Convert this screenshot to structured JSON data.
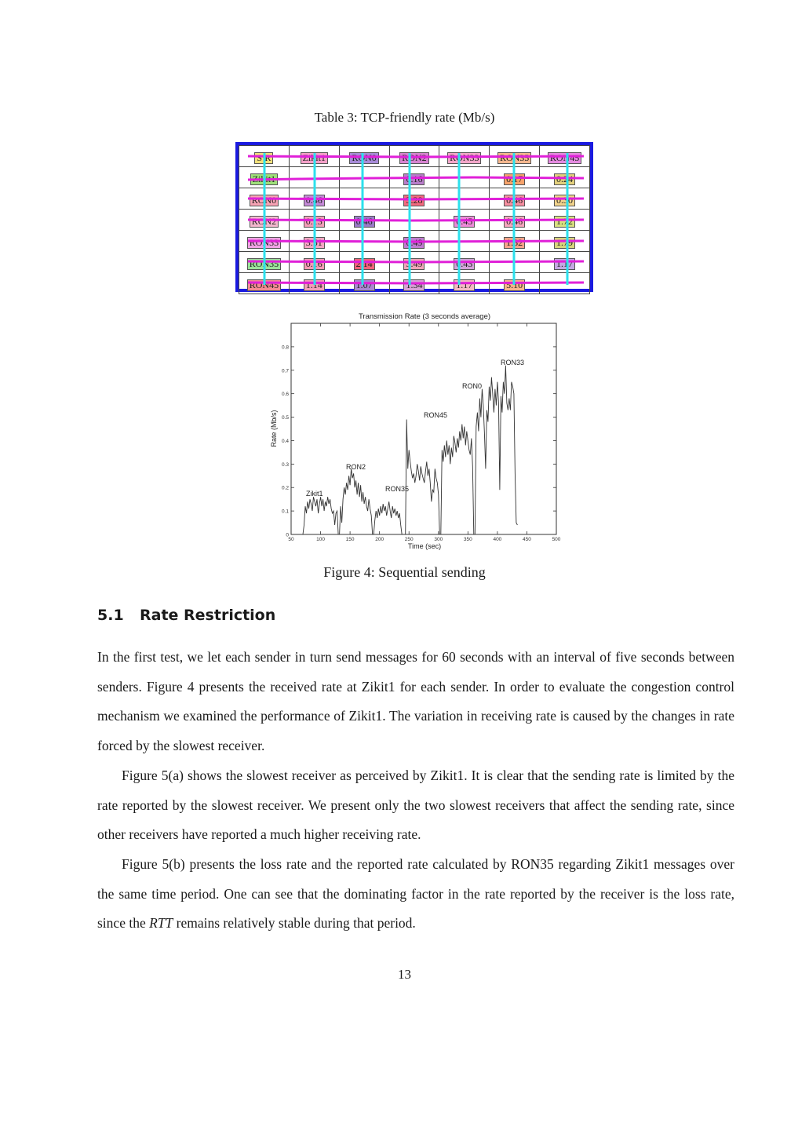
{
  "table3": {
    "caption": "Table 3: TCP-friendly rate (Mb/s)",
    "rows": [
      [
        {
          "text": "S\\R",
          "color": "#f2e07a"
        },
        {
          "text": "Zikit1",
          "color": "#f5a0c8"
        },
        {
          "text": "RON0",
          "color": "#a78bd8"
        },
        {
          "text": "RON2",
          "color": "#d783d0"
        },
        {
          "text": "RON33",
          "color": "#f3a6c9"
        },
        {
          "text": "RON35",
          "color": "#f7b78e"
        },
        {
          "text": "RON45",
          "color": "#e58ae0"
        }
      ],
      [
        {
          "text": "Zikit1",
          "color": "#9fe07a"
        },
        {
          "text": "",
          "color": ""
        },
        {
          "text": "",
          "color": ""
        },
        {
          "text": "0.16",
          "color": "#b87cc9"
        },
        {
          "text": "",
          "color": ""
        },
        {
          "text": "0.17",
          "color": "#f7a36b"
        },
        {
          "text": "0.24",
          "color": "#e3d07c"
        }
      ],
      [
        {
          "text": "RON0",
          "color": "#f7a3b4"
        },
        {
          "text": "0.46",
          "color": "#c58ad8"
        },
        {
          "text": "",
          "color": ""
        },
        {
          "text": "3.28",
          "color": "#f46a7f"
        },
        {
          "text": "",
          "color": ""
        },
        {
          "text": "0.46",
          "color": "#f78fa0"
        },
        {
          "text": "0.30",
          "color": "#f1d38b"
        }
      ],
      [
        {
          "text": "RON2",
          "color": "#f4b8ce"
        },
        {
          "text": "0.13",
          "color": "#f49fb9"
        },
        {
          "text": "0.46",
          "color": "#9b7ac8"
        },
        {
          "text": "",
          "color": ""
        },
        {
          "text": "0.45",
          "color": "#ee8bd9"
        },
        {
          "text": "0.46",
          "color": "#f7a6be"
        },
        {
          "text": "1.72",
          "color": "#d9e27f"
        }
      ],
      [
        {
          "text": "RON33",
          "color": "#f0a3e3"
        },
        {
          "text": "3.51",
          "color": "#f4a6c3"
        },
        {
          "text": "",
          "color": ""
        },
        {
          "text": "0.49",
          "color": "#c07ad0"
        },
        {
          "text": "",
          "color": ""
        },
        {
          "text": "1.32",
          "color": "#f7a38a"
        },
        {
          "text": "1.79",
          "color": "#d8d57c"
        }
      ],
      [
        {
          "text": "RON35",
          "color": "#9be39a"
        },
        {
          "text": "0.16",
          "color": "#f59bb4"
        },
        {
          "text": "2.14",
          "color": "#f2637a"
        },
        {
          "text": "3.49",
          "color": "#f0a5b7"
        },
        {
          "text": "0.43",
          "color": "#d2a3d8"
        },
        {
          "text": "",
          "color": ""
        },
        {
          "text": "1.17",
          "color": "#c4a8e2"
        }
      ],
      [
        {
          "text": "RON45",
          "color": "#f58a93"
        },
        {
          "text": "1.14",
          "color": "#f39db8"
        },
        {
          "text": "1.07",
          "color": "#a986d2"
        },
        {
          "text": "1.34",
          "color": "#d7a0d6"
        },
        {
          "text": "1.17",
          "color": "#f3b7c3"
        },
        {
          "text": "5.10",
          "color": "#f7b48b"
        },
        {
          "text": "",
          "color": ""
        }
      ]
    ]
  },
  "chart_data": {
    "type": "line",
    "title": "Transmission Rate (3 seconds average)",
    "xlabel": "Time (sec)",
    "ylabel": "Rate (Mb/s)",
    "xlim": [
      50,
      500
    ],
    "ylim": [
      0,
      0.9
    ],
    "xticks": [
      50,
      100,
      150,
      200,
      250,
      300,
      350,
      400,
      450,
      500
    ],
    "yticks": [
      0,
      0.1,
      0.2,
      0.3,
      0.4,
      0.5,
      0.6,
      0.7,
      0.8
    ],
    "series": [
      {
        "points": [
          [
            70,
            0
          ],
          [
            72,
            0.04
          ],
          [
            74,
            0.12
          ],
          [
            76,
            0.09
          ],
          [
            78,
            0.14
          ],
          [
            80,
            0.11
          ],
          [
            82,
            0.15
          ],
          [
            84,
            0.13
          ],
          [
            86,
            0.1
          ],
          [
            88,
            0.16
          ],
          [
            90,
            0.14
          ],
          [
            92,
            0.12
          ],
          [
            94,
            0.15
          ],
          [
            96,
            0.09
          ],
          [
            98,
            0.13
          ],
          [
            100,
            0.16
          ],
          [
            102,
            0.12
          ],
          [
            104,
            0.15
          ],
          [
            106,
            0.1
          ],
          [
            108,
            0.14
          ],
          [
            110,
            0.12
          ],
          [
            112,
            0.16
          ],
          [
            114,
            0.13
          ],
          [
            116,
            0.15
          ],
          [
            118,
            0.11
          ],
          [
            120,
            0.09
          ],
          [
            122,
            0.1
          ],
          [
            124,
            0.04
          ],
          [
            126,
            0.09
          ],
          [
            128,
            0.1
          ],
          [
            130,
            0.0
          ],
          [
            132,
            0.0
          ],
          [
            134,
            0.12
          ],
          [
            136,
            0.05
          ],
          [
            138,
            0.15
          ],
          [
            140,
            0.2
          ],
          [
            142,
            0.17
          ],
          [
            144,
            0.22
          ],
          [
            146,
            0.19
          ],
          [
            148,
            0.25
          ],
          [
            150,
            0.21
          ],
          [
            152,
            0.28
          ],
          [
            154,
            0.24
          ],
          [
            156,
            0.26
          ],
          [
            158,
            0.2
          ],
          [
            160,
            0.23
          ],
          [
            162,
            0.17
          ],
          [
            164,
            0.22
          ],
          [
            166,
            0.16
          ],
          [
            168,
            0.21
          ],
          [
            170,
            0.14
          ],
          [
            172,
            0.18
          ],
          [
            174,
            0.13
          ],
          [
            176,
            0.16
          ],
          [
            178,
            0.12
          ],
          [
            180,
            0.1
          ],
          [
            182,
            0.15
          ],
          [
            184,
            0.11
          ],
          [
            186,
            0.08
          ],
          [
            188,
            0.0
          ],
          [
            190,
            0.0
          ],
          [
            192,
            0.06
          ],
          [
            194,
            0.1
          ],
          [
            196,
            0.07
          ],
          [
            198,
            0.11
          ],
          [
            200,
            0.08
          ],
          [
            202,
            0.12
          ],
          [
            204,
            0.09
          ],
          [
            206,
            0.13
          ],
          [
            208,
            0.1
          ],
          [
            210,
            0.12
          ],
          [
            212,
            0.08
          ],
          [
            214,
            0.11
          ],
          [
            216,
            0.14
          ],
          [
            218,
            0.1
          ],
          [
            220,
            0.07
          ],
          [
            222,
            0.12
          ],
          [
            224,
            0.09
          ],
          [
            226,
            0.11
          ],
          [
            228,
            0.08
          ],
          [
            230,
            0.1
          ],
          [
            232,
            0.07
          ],
          [
            234,
            0.09
          ],
          [
            236,
            0.04
          ],
          [
            238,
            0.0
          ],
          [
            244,
            0.0
          ],
          [
            246,
            0.49
          ],
          [
            248,
            0.28
          ],
          [
            250,
            0.36
          ],
          [
            252,
            0.31
          ],
          [
            254,
            0.27
          ],
          [
            256,
            0.24
          ],
          [
            258,
            0.26
          ],
          [
            260,
            0.22
          ],
          [
            262,
            0.25
          ],
          [
            264,
            0.3
          ],
          [
            266,
            0.27
          ],
          [
            268,
            0.23
          ],
          [
            270,
            0.29
          ],
          [
            272,
            0.26
          ],
          [
            274,
            0.24
          ],
          [
            276,
            0.22
          ],
          [
            278,
            0.27
          ],
          [
            280,
            0.31
          ],
          [
            282,
            0.25
          ],
          [
            284,
            0.28
          ],
          [
            286,
            0.22
          ],
          [
            288,
            0.14
          ],
          [
            290,
            0.19
          ],
          [
            292,
            0.18
          ],
          [
            294,
            0.28
          ],
          [
            296,
            0.24
          ],
          [
            298,
            0.22
          ],
          [
            300,
            0.17
          ],
          [
            302,
            0.0
          ],
          [
            304,
            0.0
          ],
          [
            306,
            0.36
          ],
          [
            308,
            0.31
          ],
          [
            310,
            0.38
          ],
          [
            312,
            0.33
          ],
          [
            314,
            0.4
          ],
          [
            316,
            0.34
          ],
          [
            318,
            0.38
          ],
          [
            320,
            0.3
          ],
          [
            322,
            0.37
          ],
          [
            324,
            0.33
          ],
          [
            326,
            0.42
          ],
          [
            328,
            0.39
          ],
          [
            330,
            0.35
          ],
          [
            332,
            0.41
          ],
          [
            334,
            0.37
          ],
          [
            336,
            0.44
          ],
          [
            338,
            0.4
          ],
          [
            340,
            0.47
          ],
          [
            342,
            0.41
          ],
          [
            344,
            0.46
          ],
          [
            346,
            0.38
          ],
          [
            348,
            0.44
          ],
          [
            350,
            0.4
          ],
          [
            352,
            0.36
          ],
          [
            354,
            0.34
          ],
          [
            356,
            0.41
          ],
          [
            358,
            0.29
          ],
          [
            360,
            0.0
          ],
          [
            362,
            0.0
          ],
          [
            364,
            0.46
          ],
          [
            366,
            0.52
          ],
          [
            368,
            0.44
          ],
          [
            370,
            0.58
          ],
          [
            372,
            0.5
          ],
          [
            374,
            0.62
          ],
          [
            376,
            0.55
          ],
          [
            378,
            0.43
          ],
          [
            380,
            0.28
          ],
          [
            382,
            0.53
          ],
          [
            384,
            0.48
          ],
          [
            386,
            0.63
          ],
          [
            388,
            0.57
          ],
          [
            390,
            0.67
          ],
          [
            392,
            0.6
          ],
          [
            394,
            0.52
          ],
          [
            396,
            0.62
          ],
          [
            398,
            0.55
          ],
          [
            400,
            0.65
          ],
          [
            402,
            0.56
          ],
          [
            404,
            0.19
          ],
          [
            406,
            0.59
          ],
          [
            408,
            0.52
          ],
          [
            410,
            0.65
          ],
          [
            412,
            0.6
          ],
          [
            414,
            0.72
          ],
          [
            416,
            0.56
          ],
          [
            418,
            0.53
          ],
          [
            420,
            0.58
          ],
          [
            422,
            0.53
          ],
          [
            424,
            0.65
          ],
          [
            426,
            0.63
          ],
          [
            428,
            0.6
          ],
          [
            430,
            0.26
          ],
          [
            432,
            0.05
          ],
          [
            434,
            0.04
          ]
        ]
      }
    ],
    "annotations": [
      "Zikit1",
      "RON2",
      "RON35",
      "RON45",
      "RON0",
      "RON33"
    ]
  },
  "figure4": {
    "caption": "Figure 4: Sequential sending"
  },
  "section": {
    "number": "5.1",
    "title": "Rate Restriction",
    "para1": "In the first test, we let each sender in turn send messages for 60 seconds with an interval of five seconds between senders. Figure 4 presents the received rate at Zikit1 for each sender. In order to evaluate the congestion control mechanism we examined the performance of Zikit1. The variation in receiving rate is caused by the changes in rate forced by the slowest receiver.",
    "para2": "Figure 5(a) shows the slowest receiver as perceived by Zikit1. It is clear that the sending rate is limited by the rate reported by the slowest receiver. We present only the two slowest receivers that affect the sending rate, since other receivers have reported a much higher receiving rate.",
    "para3_before": "Figure 5(b) presents the loss rate and the reported rate calculated by RON35 regarding Zikit1 messages over the same time period. One can see that the dominating factor in the rate reported by the receiver is the loss rate, since the ",
    "para3_em": "RTT",
    "para3_after": " remains relatively stable during that period."
  },
  "page_number": "13"
}
